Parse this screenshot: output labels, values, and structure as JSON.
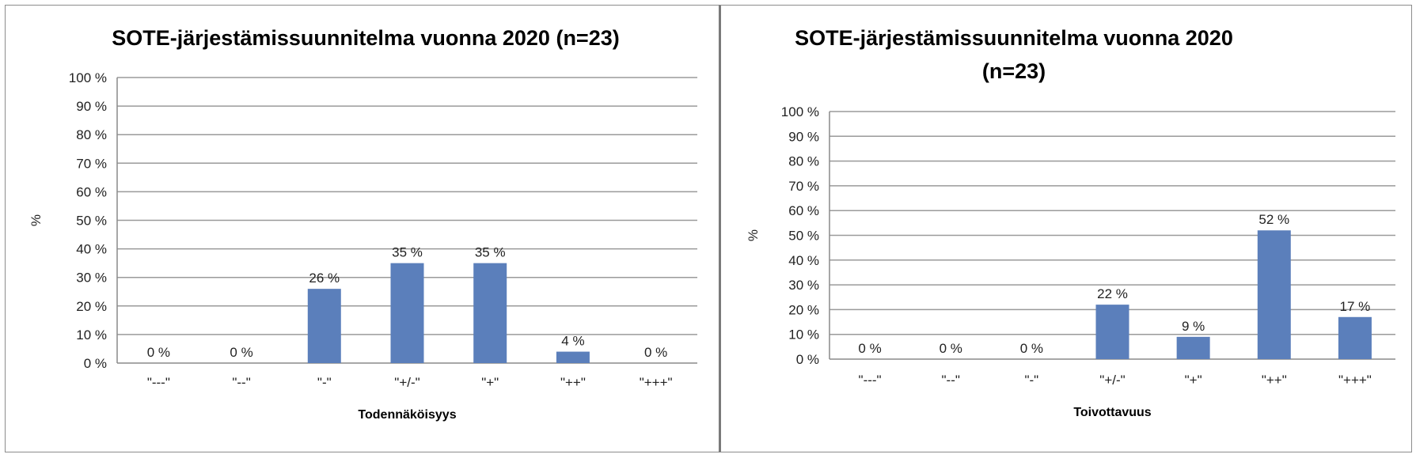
{
  "chart_data": [
    {
      "type": "bar",
      "title_lines": [
        "SOTE-järjestämissuunnitelma vuonna 2020 (n=23)"
      ],
      "xlabel": "Todennäköisyys",
      "ylabel": "%",
      "ylim": [
        0,
        100
      ],
      "yticks": [
        "0 %",
        "10 %",
        "20 %",
        "30 %",
        "40 %",
        "50 %",
        "60 %",
        "70 %",
        "80 %",
        "90 %",
        "100 %"
      ],
      "categories": [
        "\"---\"",
        "\"--\"",
        "\"-\"",
        "\"+/-\"",
        "\"+\"",
        "\"++\"",
        "\"+++\""
      ],
      "values": [
        0,
        0,
        26,
        35,
        35,
        4,
        0
      ],
      "data_labels": [
        "0 %",
        "0 %",
        "26 %",
        "35 %",
        "35 %",
        "4 %",
        "0 %"
      ],
      "bar_color": "#5b7fbb",
      "grid": true,
      "legend": "none"
    },
    {
      "type": "bar",
      "title_lines": [
        "SOTE-järjestämissuunnitelma vuonna 2020",
        "(n=23)"
      ],
      "xlabel": "Toivottavuus",
      "ylabel": "%",
      "ylim": [
        0,
        100
      ],
      "yticks": [
        "0 %",
        "10 %",
        "20 %",
        "30 %",
        "40 %",
        "50 %",
        "60 %",
        "70 %",
        "80 %",
        "90 %",
        "100 %"
      ],
      "categories": [
        "\"---\"",
        "\"--\"",
        "\"-\"",
        "\"+/-\"",
        "\"+\"",
        "\"++\"",
        "\"+++\""
      ],
      "values": [
        0,
        0,
        0,
        22,
        9,
        52,
        17
      ],
      "data_labels": [
        "0 %",
        "0 %",
        "0 %",
        "22 %",
        "9 %",
        "52 %",
        "17 %"
      ],
      "bar_color": "#5b7fbb",
      "grid": true,
      "legend": "none"
    }
  ]
}
